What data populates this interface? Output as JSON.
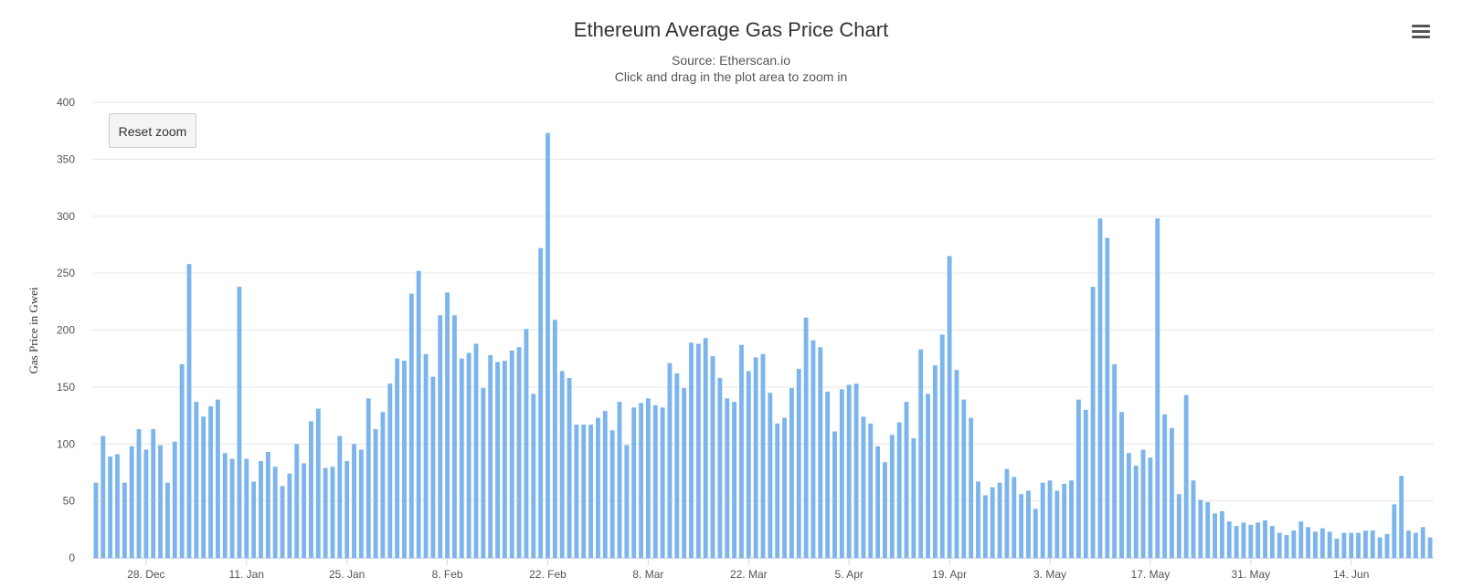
{
  "chart_data": {
    "type": "bar",
    "title": "Ethereum Average Gas Price Chart",
    "subtitle": "Source: Etherscan.io",
    "subtitle2": "Click and drag in the plot area to zoom in",
    "ylabel": "Gas Price in Gwei",
    "ylim": [
      0,
      400
    ],
    "yticks": [
      0,
      50,
      100,
      150,
      200,
      250,
      300,
      350,
      400
    ],
    "grid": true,
    "xtick_labels": [
      {
        "label": "28. Dec",
        "index": 7
      },
      {
        "label": "11. Jan",
        "index": 21
      },
      {
        "label": "25. Jan",
        "index": 35
      },
      {
        "label": "8. Feb",
        "index": 49
      },
      {
        "label": "22. Feb",
        "index": 63
      },
      {
        "label": "8. Mar",
        "index": 77
      },
      {
        "label": "22. Mar",
        "index": 91
      },
      {
        "label": "5. Apr",
        "index": 105
      },
      {
        "label": "19. Apr",
        "index": 119
      },
      {
        "label": "3. May",
        "index": 133
      },
      {
        "label": "17. May",
        "index": 147
      },
      {
        "label": "31. May",
        "index": 161
      },
      {
        "label": "14. Jun",
        "index": 175
      }
    ],
    "series": [
      {
        "color": "#7cb5ec",
        "values": [
          66,
          107,
          89,
          91,
          66,
          98,
          113,
          95,
          113,
          99,
          66,
          102,
          170,
          258,
          137,
          124,
          133,
          139,
          92,
          87,
          238,
          87,
          67,
          85,
          93,
          80,
          63,
          74,
          100,
          83,
          120,
          131,
          79,
          80,
          107,
          85,
          100,
          95,
          140,
          113,
          128,
          153,
          175,
          173,
          232,
          252,
          179,
          159,
          213,
          233,
          213,
          175,
          180,
          188,
          149,
          178,
          172,
          173,
          182,
          185,
          201,
          144,
          272,
          373,
          209,
          164,
          158,
          117,
          117,
          117,
          123,
          129,
          112,
          137,
          99,
          132,
          136,
          140,
          134,
          132,
          171,
          162,
          149,
          189,
          188,
          193,
          177,
          158,
          140,
          137,
          187,
          164,
          176,
          179,
          145,
          118,
          123,
          149,
          166,
          211,
          191,
          185,
          146,
          111,
          148,
          152,
          153,
          124,
          118,
          98,
          84,
          108,
          119,
          137,
          105,
          183,
          144,
          169,
          196,
          265,
          165,
          139,
          123,
          67,
          55,
          62,
          66,
          78,
          71,
          56,
          59,
          43,
          66,
          68,
          59,
          65,
          68,
          139,
          130,
          238,
          298,
          281,
          170,
          128,
          92,
          81,
          95,
          88,
          298,
          126,
          114,
          56,
          143,
          68,
          51,
          49,
          39,
          41,
          32,
          28,
          31,
          29,
          31,
          33,
          28,
          22,
          20,
          24,
          32,
          27,
          23,
          26,
          23,
          17,
          22,
          22,
          22,
          24,
          24,
          18,
          21,
          47,
          72,
          24,
          22,
          27,
          18
        ]
      }
    ]
  },
  "ui": {
    "reset_zoom_label": "Reset zoom",
    "menu_icon": "hamburger-menu-icon"
  }
}
